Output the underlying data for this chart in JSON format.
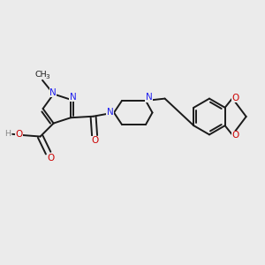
{
  "bg_color": "#ebebeb",
  "bond_color": "#1a1a1a",
  "N_color": "#2020ee",
  "O_color": "#cc0000",
  "H_color": "#888888",
  "line_width": 1.4,
  "figsize": [
    3.0,
    3.0
  ],
  "dpi": 100,
  "xlim": [
    0,
    10
  ],
  "ylim": [
    0,
    10
  ]
}
